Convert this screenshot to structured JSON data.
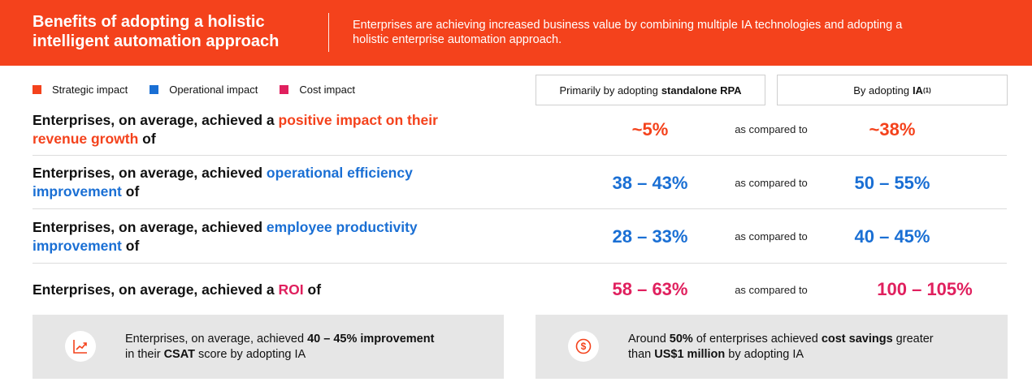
{
  "colors": {
    "strategic": "#f4421c",
    "operational": "#1a6fd4",
    "cost": "#e0205e",
    "banner": "#f4421c"
  },
  "header": {
    "title": "Benefits of adopting a holistic intelligent automation approach",
    "description": "Enterprises are achieving increased business value by combining multiple IA technologies and adopting a holistic enterprise automation approach."
  },
  "legend": [
    {
      "label": "Strategic impact"
    },
    {
      "label": "Operational impact"
    },
    {
      "label": "Cost impact"
    }
  ],
  "columns": {
    "rpa_prefix": "Primarily by adopting",
    "rpa_bold": "standalone RPA",
    "ia_prefix": "By adopting",
    "ia_bold": "IA",
    "ia_sup": "(1)"
  },
  "rows": [
    {
      "prefix": "Enterprises, on average, achieved a ",
      "highlight": "positive impact on their revenue growth",
      "suffix": " of",
      "rpa": "~5%",
      "compare": "as compared to",
      "ia": "~38%"
    },
    {
      "prefix": "Enterprises, on average, achieved ",
      "highlight": "operational efficiency improvement",
      "suffix": " of",
      "rpa": "38 – 43%",
      "compare": "as compared to",
      "ia": "50 – 55%"
    },
    {
      "prefix": "Enterprises, on average, achieved ",
      "highlight": "employee productivity improvement",
      "suffix": " of",
      "rpa": "28 – 33%",
      "compare": "as compared to",
      "ia": "40 – 45%"
    },
    {
      "prefix": "Enterprises, on average, achieved a ",
      "highlight": "ROI",
      "suffix": " of",
      "rpa": "58 – 63%",
      "compare": "as compared to",
      "ia": "100 – 105%"
    }
  ],
  "cards": [
    {
      "icon": "trend-chart-icon",
      "t1": "Enterprises, on average, achieved ",
      "b1": "40 – 45% improvement",
      "t2": "in their ",
      "b2": "CSAT",
      "t3": " score by adopting IA"
    },
    {
      "icon": "dollar-coin-icon",
      "t1": "Around ",
      "b1": "50%",
      "t2": " of enterprises achieved ",
      "b2": "cost savings",
      "t3": " greater",
      "t4": "than ",
      "b3": "US$1 million",
      "t5": " by adopting IA"
    }
  ]
}
